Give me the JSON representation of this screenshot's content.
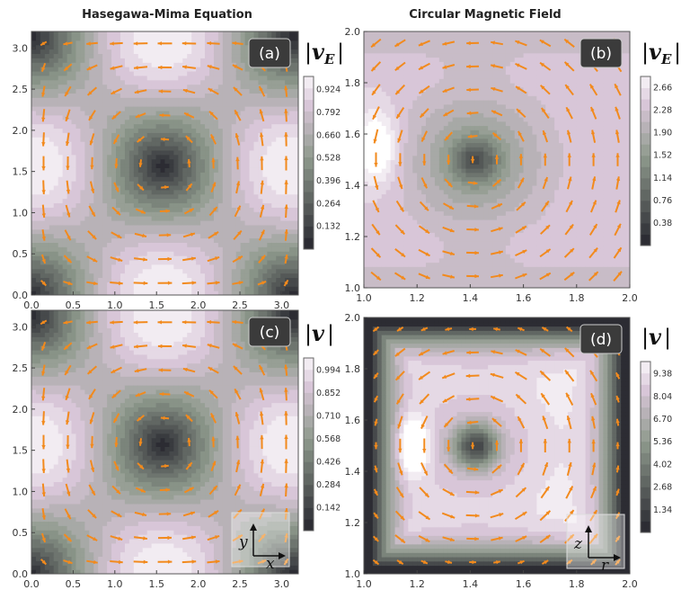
{
  "column_titles": [
    "Hasegawa-Mima Equation",
    "Circular Magnetic Field"
  ],
  "panel_labels": [
    "(a)",
    "(b)",
    "(c)",
    "(d)"
  ],
  "colorbar_titles": [
    {
      "bar": "|",
      "symbol": "v",
      "sub": "E"
    },
    {
      "bar": "|",
      "symbol": "v",
      "sub": "E"
    },
    {
      "bar": "|",
      "symbol": "v",
      "sub": ""
    },
    {
      "bar": "|",
      "symbol": "v",
      "sub": ""
    }
  ],
  "inset_axes": {
    "c": {
      "vertical": "y",
      "horizontal": "x"
    },
    "d": {
      "vertical": "z",
      "horizontal": "r"
    }
  },
  "colors": {
    "contour_low": "#2c2c33",
    "contour_mid": "#8f9a8d",
    "contour_high": "#ffffff",
    "contour_pink": "#d8c6d8",
    "arrow": "#f28a1d",
    "contour_line": "#3a3a3a"
  },
  "chart_data": [
    {
      "type": "heatmap",
      "panel": "a",
      "title": "Hasegawa-Mima Equation",
      "xlim": [
        0,
        3.2
      ],
      "ylim": [
        0,
        3.2
      ],
      "xticks": [
        "0.0",
        "0.5",
        "1.0",
        "1.5",
        "2.0",
        "2.5",
        "3.0"
      ],
      "yticks": [
        "0.0",
        "0.5",
        "1.0",
        "1.5",
        "2.0",
        "2.5",
        "3.0"
      ],
      "xtick_values": [
        0,
        0.5,
        1,
        1.5,
        2,
        2.5,
        3
      ],
      "ytick_values": [
        0,
        0.5,
        1,
        1.5,
        2,
        2.5,
        3
      ],
      "colorbar_ticks": [
        "0.132",
        "0.264",
        "0.396",
        "0.528",
        "0.660",
        "0.792",
        "0.924"
      ],
      "colorbar_values": [
        0.132,
        0.264,
        0.396,
        0.528,
        0.66,
        0.792,
        0.924
      ],
      "colorbar_range": [
        0,
        1.0
      ],
      "field": "hm",
      "contour_levels": 15
    },
    {
      "type": "heatmap",
      "panel": "b",
      "title": "Circular Magnetic Field",
      "xlim": [
        1.0,
        2.0
      ],
      "ylim": [
        1.0,
        2.0
      ],
      "xticks": [
        "1.0",
        "1.2",
        "1.4",
        "1.6",
        "1.8",
        "2.0"
      ],
      "yticks": [
        "1.0",
        "1.2",
        "1.4",
        "1.6",
        "1.8",
        "2.0"
      ],
      "xtick_values": [
        1.0,
        1.2,
        1.4,
        1.6,
        1.8,
        2.0
      ],
      "ytick_values": [
        1.0,
        1.2,
        1.4,
        1.6,
        1.8,
        2.0
      ],
      "colorbar_ticks": [
        "0.38",
        "0.76",
        "1.14",
        "1.52",
        "1.90",
        "2.28",
        "2.66"
      ],
      "colorbar_values": [
        0.38,
        0.76,
        1.14,
        1.52,
        1.9,
        2.28,
        2.66
      ],
      "colorbar_range": [
        0,
        2.85
      ],
      "field": "circE",
      "contour_levels": 15
    },
    {
      "type": "heatmap",
      "panel": "c",
      "title": "",
      "xlim": [
        0,
        3.2
      ],
      "ylim": [
        0,
        3.2
      ],
      "xticks": [
        "0.0",
        "0.5",
        "1.0",
        "1.5",
        "2.0",
        "2.5",
        "3.0"
      ],
      "yticks": [
        "0.0",
        "0.5",
        "1.0",
        "1.5",
        "2.0",
        "2.5",
        "3.0"
      ],
      "xtick_values": [
        0,
        0.5,
        1,
        1.5,
        2,
        2.5,
        3
      ],
      "ytick_values": [
        0,
        0.5,
        1,
        1.5,
        2,
        2.5,
        3
      ],
      "colorbar_ticks": [
        "0.142",
        "0.284",
        "0.426",
        "0.568",
        "0.710",
        "0.852",
        "0.994"
      ],
      "colorbar_values": [
        0.142,
        0.284,
        0.426,
        0.568,
        0.71,
        0.852,
        0.994
      ],
      "colorbar_range": [
        0,
        1.07
      ],
      "field": "hm",
      "contour_levels": 15
    },
    {
      "type": "heatmap",
      "panel": "d",
      "title": "",
      "xlim": [
        1.0,
        2.0
      ],
      "ylim": [
        1.0,
        2.0
      ],
      "xticks": [
        "1.0",
        "1.2",
        "1.4",
        "1.6",
        "1.8",
        "2.0"
      ],
      "yticks": [
        "1.0",
        "1.2",
        "1.4",
        "1.6",
        "1.8",
        "2.0"
      ],
      "xtick_values": [
        1.0,
        1.2,
        1.4,
        1.6,
        1.8,
        2.0
      ],
      "ytick_values": [
        1.0,
        1.2,
        1.4,
        1.6,
        1.8,
        2.0
      ],
      "colorbar_ticks": [
        "1.34",
        "2.68",
        "4.02",
        "5.36",
        "6.70",
        "8.04",
        "9.38"
      ],
      "colorbar_values": [
        1.34,
        2.68,
        4.02,
        5.36,
        6.7,
        8.04,
        9.38
      ],
      "colorbar_range": [
        0,
        10.1
      ],
      "field": "circV",
      "contour_levels": 15
    }
  ]
}
